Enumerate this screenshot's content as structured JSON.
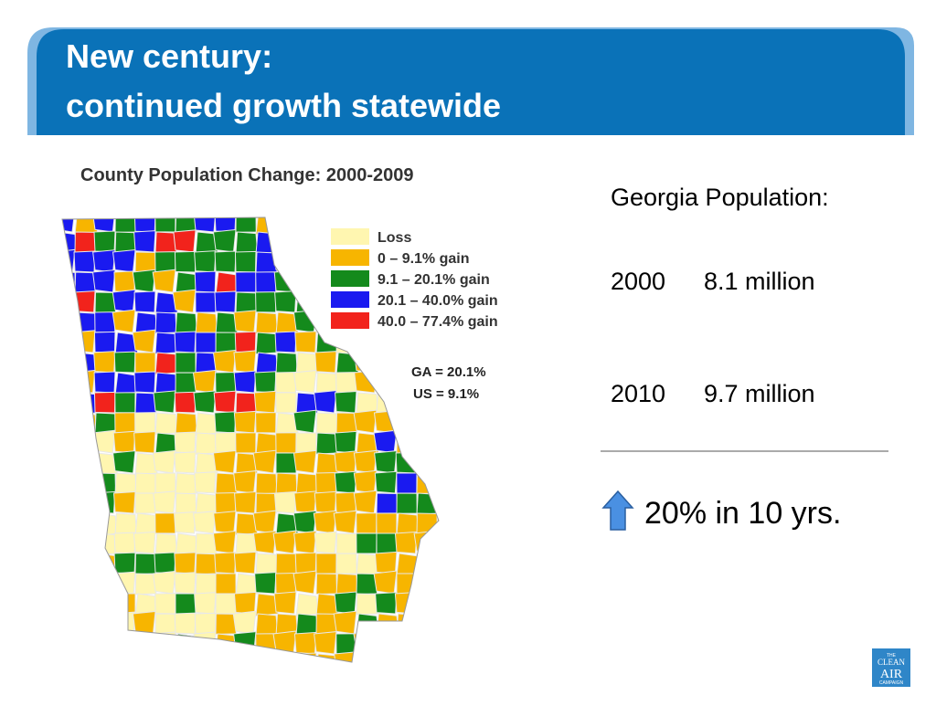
{
  "header": {
    "title_lines": [
      "New century:",
      "continued growth statewide"
    ]
  },
  "map": {
    "title": "County Population Change: 2000-2009",
    "legend": [
      {
        "label": "Loss",
        "color": "#fff6b0"
      },
      {
        "label": "0 – 9.1% gain",
        "color": "#f7b500"
      },
      {
        "label": "9.1 – 20.1% gain",
        "color": "#148a1c"
      },
      {
        "label": "20.1 – 40.0% gain",
        "color": "#1a1af0"
      },
      {
        "label": "40.0 – 77.4% gain",
        "color": "#f2231c"
      }
    ],
    "stats": [
      "GA = 20.1%",
      "US = 9.1%"
    ]
  },
  "summary": {
    "heading": "Georgia Population:",
    "rows": [
      [
        "2000",
        "8.1 million"
      ],
      [
        "2010",
        "9.7 million"
      ]
    ],
    "change": "20% in 10 yrs."
  },
  "logo": [
    "THE",
    "CLEAN",
    "AIR",
    "CAMPAIGN"
  ]
}
